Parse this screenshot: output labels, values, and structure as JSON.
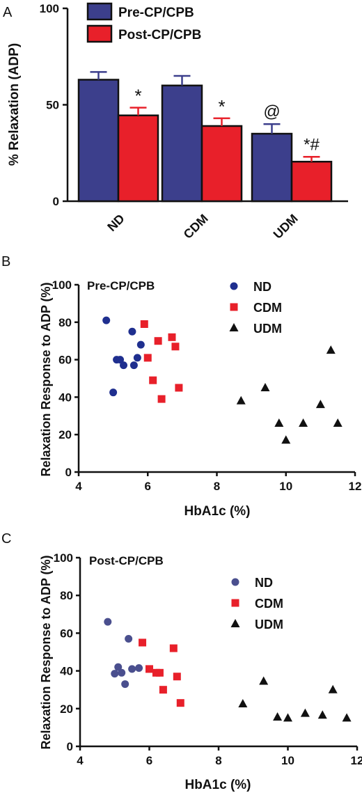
{
  "colors": {
    "pre": "#3c3f8c",
    "post": "#e8202a",
    "nd_dot_pre": "#1f2f8f",
    "nd_dot_post": "#4a4f8e",
    "cdm": "#e8202a",
    "udm": "#111111",
    "axis": "#111111"
  },
  "chart_data": [
    {
      "panel": "A",
      "type": "bar",
      "title": "",
      "ylabel": "% Relaxation (ADP)",
      "xlabel": "",
      "ylim": [
        0,
        100
      ],
      "yticks": [
        "0",
        "50",
        "100"
      ],
      "categories": [
        "ND",
        "CDM",
        "UDM"
      ],
      "legend_placement": "top",
      "series": [
        {
          "name": "Pre-CP/CPB",
          "values": [
            63,
            60,
            35
          ],
          "errors": [
            4,
            5,
            5
          ]
        },
        {
          "name": "Post-CP/CPB",
          "values": [
            44.5,
            39,
            20.5
          ],
          "errors": [
            4,
            4,
            2.5
          ]
        }
      ],
      "annotations": [
        "*",
        "*",
        "@",
        "*#"
      ]
    },
    {
      "panel": "B",
      "type": "scatter",
      "title": "Pre-CP/CPB",
      "xlabel": "HbA1c  (%)",
      "ylabel": "Relaxation Response to ADP (%)",
      "xlim": [
        4,
        12
      ],
      "ylim": [
        0,
        100
      ],
      "xticks": [
        "4",
        "6",
        "8",
        "10",
        "12"
      ],
      "yticks": [
        "0",
        "20",
        "40",
        "60",
        "80",
        "100"
      ],
      "legend_placement": "top-right",
      "series": [
        {
          "name": "ND",
          "marker": "circle",
          "x": [
            4.8,
            5.0,
            5.1,
            5.2,
            5.3,
            5.55,
            5.7,
            5.8,
            5.6
          ],
          "y": [
            81,
            42.5,
            60,
            60,
            57,
            75,
            61,
            68,
            57
          ]
        },
        {
          "name": "CDM",
          "marker": "square",
          "x": [
            5.9,
            6.0,
            6.15,
            6.3,
            6.4,
            6.7,
            6.8,
            6.9
          ],
          "y": [
            79,
            61,
            49,
            70,
            39,
            72,
            67,
            45
          ]
        },
        {
          "name": "UDM",
          "marker": "triangle",
          "x": [
            8.7,
            9.4,
            9.8,
            10.0,
            10.5,
            11.0,
            11.3,
            11.5
          ],
          "y": [
            38,
            45,
            26,
            17,
            26,
            36,
            65,
            26
          ]
        }
      ]
    },
    {
      "panel": "C",
      "type": "scatter",
      "title": "Post-CP/CPB",
      "xlabel": "HbA1c  (%)",
      "ylabel": "Relaxation Response to ADP (%)",
      "xlim": [
        4,
        12
      ],
      "ylim": [
        0,
        100
      ],
      "xticks": [
        "4",
        "6",
        "8",
        "10",
        "12"
      ],
      "yticks": [
        "0",
        "20",
        "40",
        "60",
        "80",
        "100"
      ],
      "legend_placement": "top-right",
      "series": [
        {
          "name": "ND",
          "marker": "circle",
          "x": [
            4.8,
            5.0,
            5.1,
            5.2,
            5.3,
            5.4,
            5.5,
            5.7
          ],
          "y": [
            66,
            38.5,
            42,
            39,
            33,
            57,
            41,
            41.5
          ]
        },
        {
          "name": "CDM",
          "marker": "square",
          "x": [
            5.8,
            6.0,
            6.2,
            6.3,
            6.4,
            6.7,
            6.8,
            6.9
          ],
          "y": [
            55,
            41,
            39,
            39,
            30,
            52,
            37,
            23
          ]
        },
        {
          "name": "UDM",
          "marker": "triangle",
          "x": [
            8.7,
            9.3,
            9.7,
            10.0,
            10.5,
            11.0,
            11.3,
            11.7
          ],
          "y": [
            22.5,
            34.5,
            15.5,
            15,
            17.5,
            16.5,
            30,
            15
          ]
        }
      ]
    }
  ],
  "panel_labels": [
    "A",
    "B",
    "C"
  ]
}
